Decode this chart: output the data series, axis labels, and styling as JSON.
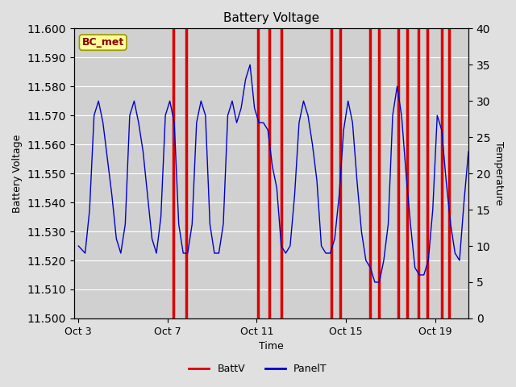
{
  "title": "Battery Voltage",
  "xlabel": "Time",
  "ylabel_left": "Battery Voltage",
  "ylabel_right": "Temperature",
  "ylim_left": [
    11.5,
    11.6
  ],
  "ylim_right": [
    0,
    40
  ],
  "yticks_left": [
    11.5,
    11.51,
    11.52,
    11.53,
    11.54,
    11.55,
    11.56,
    11.57,
    11.58,
    11.59,
    11.6
  ],
  "yticks_right": [
    0,
    5,
    10,
    15,
    20,
    25,
    30,
    35,
    40
  ],
  "xtick_labels": [
    "Oct 3",
    "Oct 7",
    "Oct 11",
    "Oct 15",
    "Oct 19"
  ],
  "xtick_positions": [
    0,
    4,
    8,
    12,
    16
  ],
  "xlim": [
    -0.2,
    17.5
  ],
  "background_color": "#e0e0e0",
  "plot_bg_color": "#d0d0d0",
  "grid_color": "#ffffff",
  "batt_color": "#dd0000",
  "panel_color": "#0000cc",
  "annotation_box_color": "#ffff99",
  "annotation_border_color": "#999900",
  "annotation_text": "BC_met",
  "annotation_text_color": "#880000",
  "legend_batt_label": "BattV",
  "legend_panel_label": "PanelT",
  "batt_spikes": [
    4.25,
    4.85,
    8.05,
    8.55,
    9.1,
    11.35,
    11.75,
    13.1,
    13.5,
    14.35,
    14.75,
    15.25,
    15.65,
    16.3,
    16.65
  ],
  "panel_nodes_x": [
    0.0,
    0.3,
    0.5,
    0.7,
    0.9,
    1.1,
    1.3,
    1.5,
    1.7,
    1.9,
    2.1,
    2.3,
    2.5,
    2.7,
    2.9,
    3.1,
    3.3,
    3.5,
    3.7,
    3.9,
    4.1,
    4.3,
    4.5,
    4.7,
    4.9,
    5.1,
    5.3,
    5.5,
    5.7,
    5.9,
    6.1,
    6.3,
    6.5,
    6.7,
    6.9,
    7.1,
    7.3,
    7.5,
    7.7,
    7.9,
    8.1,
    8.3,
    8.5,
    8.7,
    8.9,
    9.1,
    9.3,
    9.5,
    9.7,
    9.9,
    10.1,
    10.3,
    10.5,
    10.7,
    10.9,
    11.1,
    11.3,
    11.5,
    11.7,
    11.9,
    12.1,
    12.3,
    12.5,
    12.7,
    12.9,
    13.1,
    13.3,
    13.5,
    13.7,
    13.9,
    14.1,
    14.3,
    14.5,
    14.7,
    14.9,
    15.1,
    15.3,
    15.5,
    15.7,
    15.9,
    16.1,
    16.3,
    16.5,
    16.7,
    16.9,
    17.1,
    17.3,
    17.5
  ],
  "panel_nodes_y": [
    10,
    9,
    15,
    28,
    30,
    27,
    22,
    17,
    11,
    9,
    13,
    28,
    30,
    27,
    23,
    17,
    11,
    9,
    14,
    28,
    30,
    27,
    13,
    9,
    9,
    13,
    27,
    30,
    28,
    13,
    9,
    9,
    13,
    28,
    30,
    27,
    29,
    33,
    35,
    29,
    27,
    27,
    26,
    21,
    18,
    10,
    9,
    10,
    17,
    27,
    30,
    28,
    24,
    19,
    10,
    9,
    9,
    11,
    17,
    26,
    30,
    27,
    19,
    12,
    8,
    7,
    5,
    5,
    8,
    13,
    28,
    32,
    28,
    20,
    13,
    7,
    6,
    6,
    8,
    15,
    28,
    26,
    19,
    13,
    9,
    8,
    16,
    23
  ]
}
